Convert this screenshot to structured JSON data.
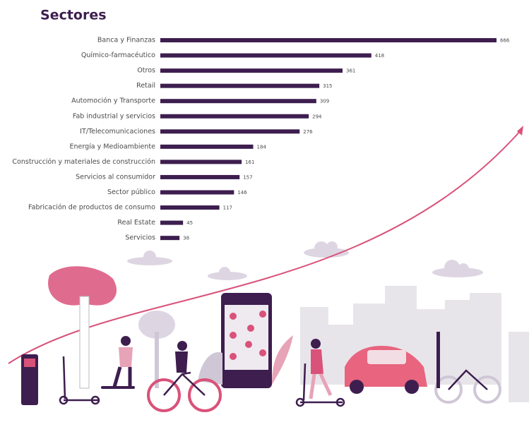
{
  "chart_data": {
    "type": "bar",
    "orientation": "horizontal",
    "title": "Sectores",
    "categories": [
      "Banca y Finanzas",
      "Químico-farmacéutico",
      "Otros",
      "Retail",
      "Automoción y Transporte",
      "Fab industrial y servicios",
      "IT/Telecomunicaciones",
      "Energía y Medioambiente",
      "Construcción y materiales de construcción",
      "Servicios al consumidor",
      "Sector público",
      "Fabricación de productos de consumo",
      "Real Estate",
      "Servicios"
    ],
    "values": [
      666,
      418,
      361,
      315,
      309,
      294,
      276,
      184,
      161,
      157,
      146,
      117,
      45,
      38
    ],
    "color": "#3d1e4f"
  }
}
